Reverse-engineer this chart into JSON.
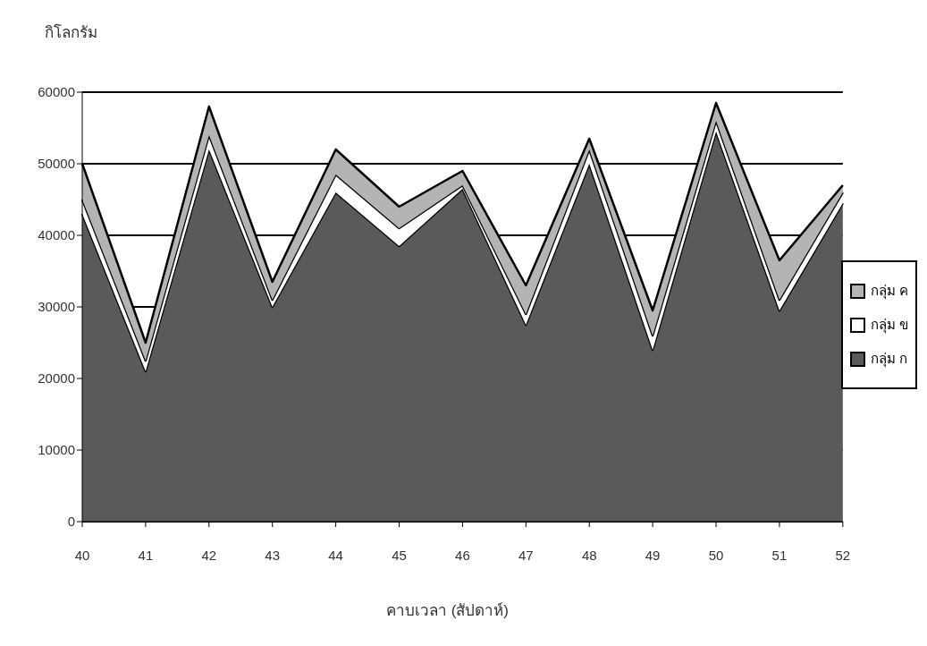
{
  "chart_data": {
    "type": "area",
    "stacked": true,
    "ylabel": "กิโลกรัม",
    "xlabel": "คาบเวลา (สัปดาห์)",
    "categories": [
      "40",
      "41",
      "42",
      "43",
      "44",
      "45",
      "46",
      "47",
      "48",
      "49",
      "50",
      "51",
      "52"
    ],
    "series": [
      {
        "name": "กลุ่ม ก",
        "color": "#5a5a5a",
        "values": [
          43000,
          21000,
          52000,
          30000,
          46000,
          38500,
          46500,
          27500,
          50000,
          24000,
          54500,
          29500,
          44500
        ]
      },
      {
        "name": "กลุ่ม ข",
        "color": "#ffffff",
        "values": [
          2000,
          1500,
          2000,
          1000,
          2500,
          2500,
          500,
          1500,
          2000,
          2000,
          1500,
          1500,
          1500
        ]
      },
      {
        "name": "กลุ่ม ค",
        "color": "#b4b4b4",
        "values": [
          5000,
          2500,
          4000,
          2500,
          3500,
          3000,
          2000,
          4000,
          1500,
          3500,
          2500,
          5500,
          1000
        ]
      }
    ],
    "ylim": [
      0,
      60000
    ],
    "yticks": [
      0,
      10000,
      20000,
      30000,
      40000,
      50000,
      60000
    ],
    "grid": "y",
    "legend": "right"
  }
}
